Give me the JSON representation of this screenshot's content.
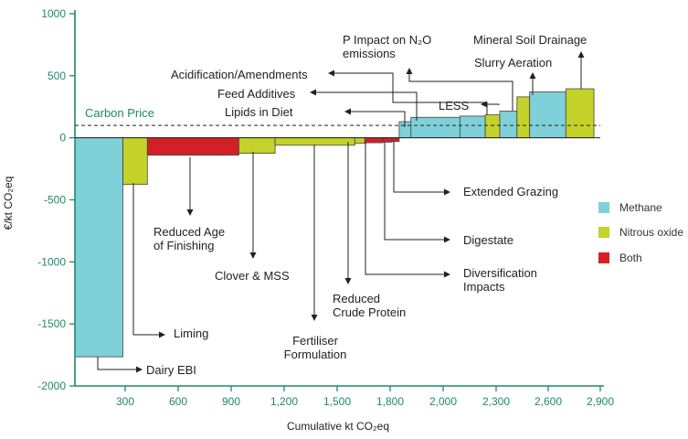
{
  "chart_data": {
    "type": "bar",
    "subtype": "marginal-abatement-cost-curve",
    "xlabel": "Cumulative kt CO₂eq",
    "ylabel": "€/kt CO₂eq",
    "xlim": [
      0,
      2900
    ],
    "ylim": [
      -2000,
      1000
    ],
    "x_ticks": [
      "300",
      "600",
      "900",
      "1,200",
      "1,500",
      "1,800",
      "2,000",
      "2,300",
      "2,600",
      "2,900"
    ],
    "y_ticks": [
      "1000",
      "500",
      "0",
      "-500",
      "-1000",
      "-1500",
      "-2000"
    ],
    "carbon_price": 100,
    "carbon_price_label": "Carbon Price",
    "legend": [
      {
        "name": "Methane",
        "color": "#7fd0d8"
      },
      {
        "name": "Nitrous oxide",
        "color": "#c4d22a"
      },
      {
        "name": "Both",
        "color": "#d32027"
      }
    ],
    "bars": [
      {
        "label": "Dairy EBI",
        "gas": "Methane",
        "x0": 0,
        "x1": 265,
        "value": -1765
      },
      {
        "label": "Liming",
        "gas": "Nitrous oxide",
        "x0": 265,
        "x1": 400,
        "value": -375
      },
      {
        "label": "Reduced Age of Finishing",
        "gas": "Both",
        "x0": 400,
        "x1": 905,
        "value": -140
      },
      {
        "label": "Clover & MSS",
        "gas": "Nitrous oxide",
        "x0": 905,
        "x1": 1105,
        "value": -125
      },
      {
        "label": "Fertiliser Formulation",
        "gas": "Nitrous oxide",
        "x0": 1105,
        "x1": 1545,
        "value": -60
      },
      {
        "label": "Reduced Crude Protein",
        "gas": "Nitrous oxide",
        "x0": 1545,
        "x1": 1600,
        "value": -45
      },
      {
        "label": "Diversification Impacts",
        "gas": "Both",
        "x0": 1600,
        "x1": 1700,
        "value": -40
      },
      {
        "label": "Digestate",
        "gas": "Both",
        "x0": 1700,
        "x1": 1750,
        "value": -35
      },
      {
        "label": "Extended Grazing",
        "gas": "Both",
        "x0": 1750,
        "x1": 1790,
        "value": -30
      },
      {
        "label": "Lipids in Diet",
        "gas": "Methane",
        "x0": 1790,
        "x1": 1855,
        "value": 130
      },
      {
        "label": "Feed Additives",
        "gas": "Methane",
        "x0": 1855,
        "x1": 2125,
        "value": 165
      },
      {
        "label": "Acidification/Amendments",
        "gas": "Methane",
        "x0": 2125,
        "x1": 2265,
        "value": 175
      },
      {
        "label": "LESS",
        "gas": "Nitrous oxide",
        "x0": 2265,
        "x1": 2345,
        "value": 185
      },
      {
        "label": "P Impact on N₂O emissions",
        "gas": "Methane",
        "x0": 2345,
        "x1": 2440,
        "value": 215
      },
      {
        "label": "Slurry Aeration",
        "gas": "Nitrous oxide",
        "x0": 2440,
        "x1": 2510,
        "value": 330
      },
      {
        "label": "(unlabelled)",
        "gas": "Methane",
        "x0": 2510,
        "x1": 2710,
        "value": 370
      },
      {
        "label": "Mineral Soil Drainage",
        "gas": "Nitrous oxide",
        "x0": 2710,
        "x1": 2865,
        "value": 395
      }
    ],
    "annotations": [
      {
        "key": "dairy_ebi",
        "text": [
          "Dairy EBI"
        ]
      },
      {
        "key": "liming",
        "text": [
          "Liming"
        ]
      },
      {
        "key": "rage",
        "text": [
          "Reduced Age",
          "of Finishing"
        ]
      },
      {
        "key": "clover",
        "text": [
          "Clover & MSS"
        ]
      },
      {
        "key": "fert",
        "text": [
          "Fertiliser",
          "Formulation"
        ]
      },
      {
        "key": "rcp",
        "text": [
          "Reduced",
          "Crude Protein"
        ]
      },
      {
        "key": "divers",
        "text": [
          "Diversification",
          "Impacts"
        ]
      },
      {
        "key": "digestate",
        "text": [
          "Digestate"
        ]
      },
      {
        "key": "ext_grazing",
        "text": [
          "Extended Grazing"
        ]
      },
      {
        "key": "lipids",
        "text": [
          "Lipids in Diet"
        ]
      },
      {
        "key": "feed",
        "text": [
          "Feed Additives"
        ]
      },
      {
        "key": "acid",
        "text": [
          "Acidification/Amendments"
        ]
      },
      {
        "key": "less",
        "text": [
          "LESS"
        ]
      },
      {
        "key": "pimpact",
        "text": [
          "P Impact on N₂O",
          "emissions"
        ]
      },
      {
        "key": "slurry",
        "text": [
          "Slurry Aeration"
        ]
      },
      {
        "key": "mineral",
        "text": [
          "Mineral Soil Drainage"
        ]
      }
    ]
  }
}
